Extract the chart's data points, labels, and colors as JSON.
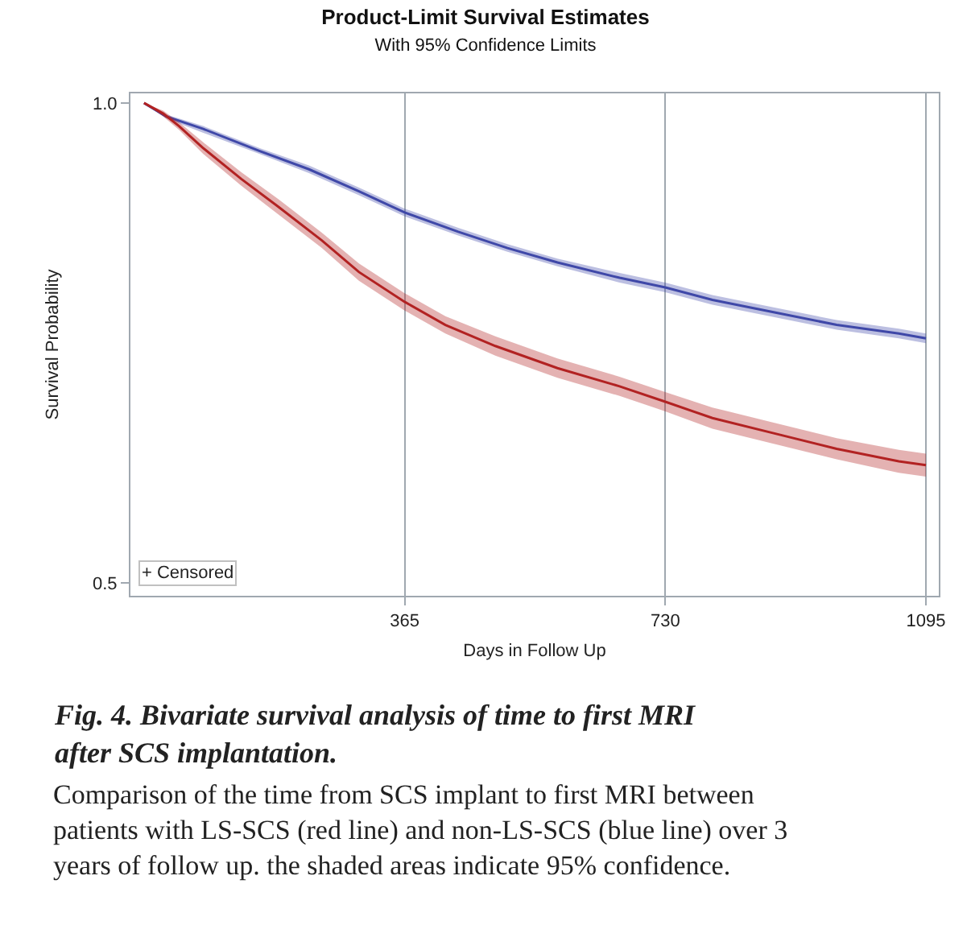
{
  "chart_data": {
    "type": "line",
    "title": "Product-Limit Survival Estimates",
    "subtitle": "With 95% Confidence Limits",
    "xlabel": "Days in Follow Up",
    "ylabel": "Survival Probability",
    "xlim": [
      -19,
      1113
    ],
    "ylim": [
      0.487,
      1.01
    ],
    "xticks": [
      365,
      730,
      1095
    ],
    "yticks": [
      {
        "value": 1.0,
        "label": "1.0"
      },
      {
        "value": 0.5,
        "label": "0.5"
      }
    ],
    "grid": "x",
    "marker": "none",
    "line_style": "solid",
    "series": [
      {
        "color": "#3f48a8",
        "x": [
          0,
          31,
          83,
          162,
          231,
          301,
          365,
          440,
          509,
          579,
          666,
          730,
          796,
          883,
          970,
          1057,
          1095
        ],
        "values": [
          1.0,
          0.986,
          0.973,
          0.95,
          0.931,
          0.908,
          0.886,
          0.866,
          0.849,
          0.834,
          0.818,
          0.808,
          0.795,
          0.782,
          0.769,
          0.76,
          0.755
        ],
        "lower": [
          1.0,
          0.984,
          0.969,
          0.947,
          0.927,
          0.904,
          0.882,
          0.862,
          0.845,
          0.83,
          0.813,
          0.803,
          0.79,
          0.777,
          0.764,
          0.755,
          0.75
        ],
        "upper": [
          1.0,
          0.988,
          0.976,
          0.953,
          0.935,
          0.912,
          0.89,
          0.87,
          0.853,
          0.838,
          0.823,
          0.813,
          0.8,
          0.787,
          0.774,
          0.765,
          0.76
        ]
      },
      {
        "color": "#b22222",
        "x": [
          0,
          27,
          49,
          83,
          136,
          188,
          249,
          301,
          365,
          422,
          492,
          579,
          666,
          730,
          796,
          883,
          970,
          1057,
          1095
        ],
        "values": [
          1.0,
          0.989,
          0.976,
          0.953,
          0.921,
          0.892,
          0.857,
          0.824,
          0.793,
          0.769,
          0.747,
          0.724,
          0.705,
          0.689,
          0.672,
          0.656,
          0.64,
          0.627,
          0.623
        ],
        "lower": [
          1.0,
          0.986,
          0.972,
          0.947,
          0.914,
          0.884,
          0.849,
          0.815,
          0.784,
          0.76,
          0.737,
          0.714,
          0.695,
          0.679,
          0.661,
          0.645,
          0.629,
          0.615,
          0.611
        ],
        "upper": [
          1.0,
          0.992,
          0.98,
          0.959,
          0.928,
          0.9,
          0.865,
          0.833,
          0.802,
          0.778,
          0.757,
          0.734,
          0.715,
          0.699,
          0.683,
          0.667,
          0.651,
          0.639,
          0.635
        ]
      }
    ],
    "annotations": [
      "+ Censored",
      "Fig. 4. Bivariate survival analysis of time to first MRI after SCS implantation.",
      "Comparison of the time from SCS implant to first MRI between patients with LS-SCS (red line) and non-LS-SCS (blue line) over 3 years of follow up. the shaded areas indicate 95% confidence."
    ]
  }
}
